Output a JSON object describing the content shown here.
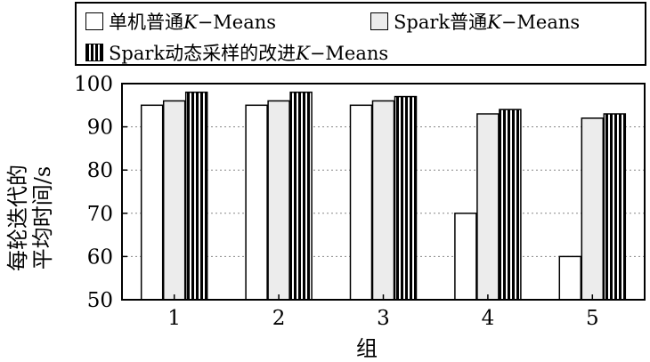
{
  "chart_data": {
    "type": "bar",
    "categories": [
      "1",
      "2",
      "3",
      "4",
      "5"
    ],
    "series": [
      {
        "name": "单机普通K-Means",
        "values": [
          95,
          95,
          95,
          70,
          60
        ],
        "fill": "white"
      },
      {
        "name": "Spark普通K-Means",
        "values": [
          96,
          96,
          96,
          93,
          92
        ],
        "fill": "light-grey"
      },
      {
        "name": "Spark动态采样的改进K-Means",
        "values": [
          98,
          98,
          97,
          94,
          93
        ],
        "fill": "vertical-stripes"
      }
    ],
    "legend_labels": [
      {
        "prefix": "单机普通",
        "k": "K",
        "suffix": "−Means"
      },
      {
        "prefix": "Spark普通",
        "k": "K",
        "suffix": "−Means"
      },
      {
        "prefix": "Spark动态采样的改进",
        "k": "K",
        "suffix": "−Means"
      }
    ],
    "ylabel_lines": [
      "每轮迭代的",
      "平均时间/s"
    ],
    "xlabel": "组",
    "ylim": [
      50,
      100
    ],
    "yticks": [
      50,
      60,
      70,
      80,
      90,
      100
    ],
    "grid": "horizontal-dotted",
    "legend_position": "top"
  },
  "colors": {
    "axis": "#000000",
    "grey_fill": "#ececec",
    "grid": "#888888"
  }
}
